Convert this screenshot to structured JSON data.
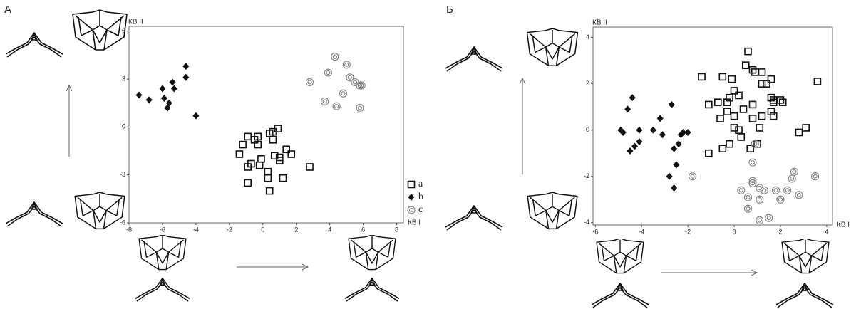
{
  "chart_data": [
    {
      "type": "scatter",
      "panel_label": "А",
      "xlabel": "КВ I",
      "ylabel": "КВ II",
      "xlim": [
        -8,
        8.4
      ],
      "ylim": [
        -6,
        6.3
      ],
      "xticks": [
        -8,
        -6,
        -4,
        -2,
        0,
        2,
        4,
        6,
        8
      ],
      "yticks": [
        -6,
        -3,
        0,
        3,
        6
      ],
      "series": [
        {
          "name": "a",
          "marker": "square",
          "color": "#111111",
          "x": [
            -0.9,
            -0.5,
            -0.3,
            0.4,
            0.6,
            0.9,
            -1.2,
            -0.3,
            0.6,
            -1.4,
            1.4,
            1.7,
            0.7,
            1.0,
            1.0,
            -0.1,
            -0.7,
            -0.9,
            -0.2,
            0.3,
            2.8,
            -0.9,
            0.3,
            1.2,
            0.4
          ],
          "values": [
            -0.6,
            -0.8,
            -0.6,
            -0.4,
            -0.3,
            -0.1,
            -1.1,
            -1.1,
            -0.8,
            -1.7,
            -1.4,
            -1.7,
            -1.8,
            -1.9,
            -2.1,
            -2.0,
            -2.3,
            -2.5,
            -2.4,
            -2.8,
            -2.5,
            -3.5,
            -3.2,
            -3.2,
            -4.0
          ]
        },
        {
          "name": "b",
          "marker": "diamond",
          "color": "#111111",
          "x": [
            -7.4,
            -6.8,
            -6.0,
            -5.4,
            -4.6,
            -4.6,
            -5.9,
            -5.6,
            -5.7,
            -5.3,
            -4.0
          ],
          "values": [
            2.0,
            1.7,
            2.4,
            2.8,
            3.8,
            3.1,
            1.8,
            1.5,
            1.2,
            2.4,
            0.7
          ]
        },
        {
          "name": "c",
          "marker": "ring",
          "color": "#888888",
          "x": [
            4.3,
            5.0,
            3.9,
            2.8,
            5.2,
            5.5,
            5.8,
            5.9,
            4.8,
            3.7,
            4.4,
            5.8
          ],
          "values": [
            4.4,
            3.9,
            3.4,
            2.8,
            3.1,
            2.8,
            2.6,
            2.6,
            2.1,
            1.6,
            1.3,
            1.2
          ]
        }
      ]
    },
    {
      "type": "scatter",
      "panel_label": "Б",
      "xlabel": "КВ I",
      "ylabel": "КВ II",
      "xlim": [
        -6.1,
        4.25
      ],
      "ylim": [
        -4.1,
        4.45
      ],
      "xticks": [
        -6,
        -4,
        -2,
        0,
        2,
        4
      ],
      "yticks": [
        -4,
        -2,
        0,
        2,
        4
      ],
      "series": [
        {
          "marker": "square",
          "color": "#111111",
          "x": [
            0.6,
            0.5,
            0.8,
            0.9,
            1.2,
            -0.5,
            -1.4,
            -0.1,
            1.6,
            3.6,
            1.2,
            1.4,
            0.0,
            0.2,
            -0.2,
            -0.7,
            -1.1,
            -0.3,
            0.8,
            1.6,
            1.7,
            2.0,
            2.1,
            1.7,
            0.4,
            -0.3,
            1.6,
            1.7,
            0.0,
            1.2,
            0.8,
            -0.6,
            0.0,
            0.2,
            1.1,
            3.1,
            2.8,
            0.3,
            1.0,
            -0.2,
            -0.5,
            0.7,
            -1.1
          ],
          "values": [
            3.4,
            2.8,
            2.6,
            2.5,
            2.5,
            2.3,
            2.3,
            2.2,
            2.2,
            2.1,
            2.0,
            2.0,
            1.7,
            1.5,
            1.4,
            1.2,
            1.1,
            1.2,
            1.1,
            1.4,
            1.3,
            1.3,
            1.2,
            1.2,
            0.9,
            0.8,
            0.8,
            0.6,
            0.6,
            0.6,
            0.5,
            0.5,
            0.1,
            0.0,
            0.1,
            0.1,
            -0.1,
            -0.3,
            -0.6,
            -0.6,
            -0.8,
            -0.8,
            -1.0
          ]
        },
        {
          "marker": "diamond",
          "color": "#111111",
          "x": [
            -4.4,
            -4.6,
            -4.9,
            -4.8,
            -4.1,
            -3.5,
            -3.2,
            -2.7,
            -2.2,
            -2.3,
            -2.0,
            -2.4,
            -2.6,
            -3.1,
            -4.1,
            -4.3,
            -4.5,
            -2.5,
            -2.8,
            -2.6
          ],
          "values": [
            1.4,
            0.9,
            0.0,
            -0.1,
            0.0,
            0.0,
            0.5,
            1.1,
            -0.1,
            -0.2,
            -0.1,
            -0.6,
            -0.8,
            -0.2,
            -0.5,
            -0.7,
            -0.9,
            -1.5,
            -2.0,
            -2.5
          ]
        },
        {
          "marker": "ring",
          "color": "#888888",
          "x": [
            -1.8,
            0.9,
            0.8,
            0.8,
            0.8,
            0.3,
            1.1,
            1.3,
            1.8,
            2.3,
            2.5,
            2.6,
            3.5,
            2.8,
            0.6,
            2.0,
            1.1,
            0.6,
            1.5,
            1.1
          ],
          "values": [
            -2.0,
            -0.6,
            -1.4,
            -2.2,
            -2.3,
            -2.6,
            -2.5,
            -2.6,
            -2.6,
            -2.6,
            -2.1,
            -1.8,
            -2.0,
            -2.8,
            -2.9,
            -3.0,
            -3.0,
            -3.4,
            -3.8,
            -3.9
          ]
        }
      ]
    }
  ]
}
